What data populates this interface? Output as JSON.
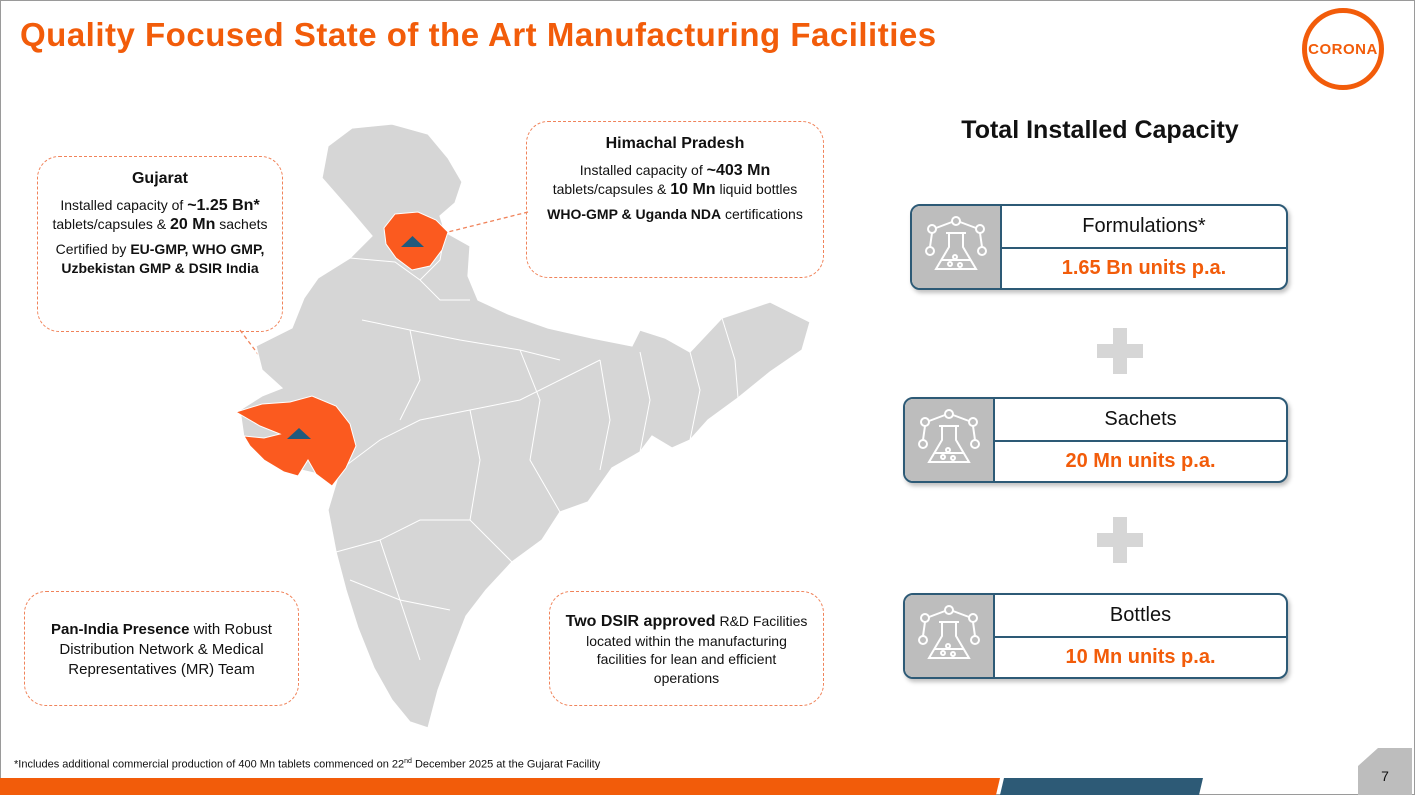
{
  "slide": {
    "title": "Quality Focused State of the Art Manufacturing Facilities",
    "logo_text": "CORONA",
    "page_number": "7"
  },
  "gujarat": {
    "heading": "Gujarat",
    "cap_pre": "Installed capacity of ",
    "cap_tablets": "~1.25 Bn*",
    "cap_mid": " tablets/capsules & ",
    "cap_sachets": "20 Mn",
    "cap_post": " sachets",
    "cert_pre": "Certified by ",
    "cert_bold": "EU-GMP, WHO GMP, Uzbekistan GMP & DSIR India"
  },
  "himachal": {
    "heading": "Himachal Pradesh",
    "cap_pre": "Installed capacity of ",
    "cap_tablets": "~403 Mn",
    "cap_mid": " tablets/capsules & ",
    "cap_bottles": "10 Mn",
    "cap_post": " liquid bottles",
    "cert_bold": "WHO-GMP & Uganda NDA",
    "cert_post": " certifications"
  },
  "pan_india": {
    "bold": "Pan-India Presence",
    "text": " with Robust Distribution Network & Medical Representatives (MR) Team"
  },
  "dsir": {
    "bold": "Two DSIR approved",
    "text": " R&D Facilities located within the manufacturing facilities for lean and efficient operations"
  },
  "capacity": {
    "title": "Total Installed Capacity",
    "items": [
      {
        "label": "Formulations*",
        "value": "1.65 Bn units p.a."
      },
      {
        "label": "Sachets",
        "value": "20 Mn units p.a."
      },
      {
        "label": "Bottles",
        "value": "10 Mn units p.a."
      }
    ]
  },
  "footnote": {
    "pre": "*Includes additional commercial production of 400 Mn tablets commenced on 22",
    "sup": "nd",
    "post": " December 2025 at the Gujarat Facility"
  },
  "colors": {
    "accent": "#f25c0a",
    "navy": "#2d5a76",
    "map_grey": "#d6d6d6"
  }
}
